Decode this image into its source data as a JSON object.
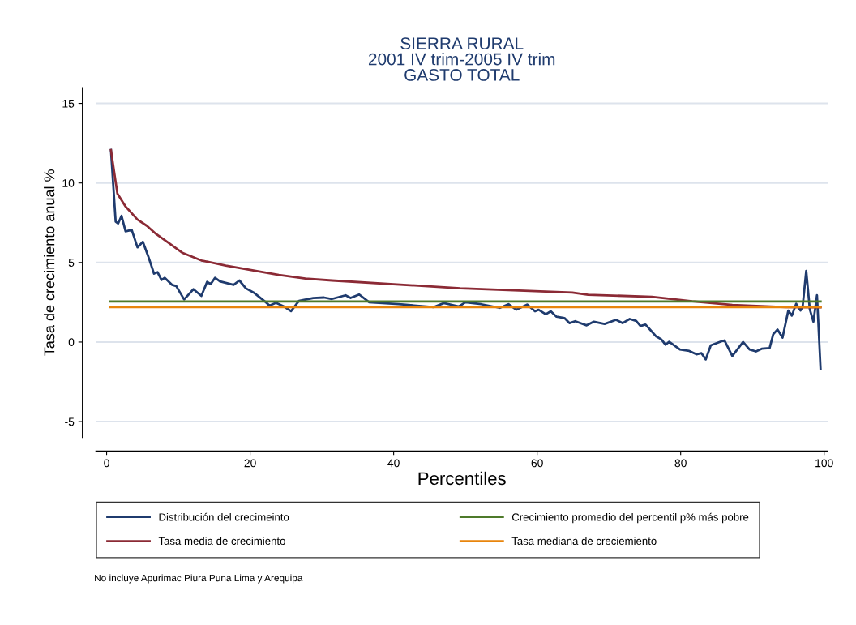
{
  "chart_data": {
    "type": "line",
    "title": "SIERRA RURAL\n2001 IV trim-2005 IV trim\nGASTO TOTAL",
    "xlabel": "Percentiles",
    "ylabel": "Tasa de crecimiento anual %",
    "xlim": [
      -1.5,
      100.5
    ],
    "ylim": [
      -6,
      16
    ],
    "xticks": [
      0,
      20,
      40,
      60,
      80,
      100
    ],
    "yticks": [
      -5,
      0,
      5,
      10,
      15
    ],
    "grid": "y",
    "legend": "bottom",
    "line_style": "solid",
    "marker": "none",
    "series": [
      {
        "name": "Distribución del crecimeinto",
        "color": "#1f3b6e",
        "x": [
          0.6,
          1.26,
          1.6,
          2.08,
          2.64,
          3.5,
          4.3,
          5.05,
          5.8,
          6.6,
          7.1,
          7.65,
          8.1,
          9.1,
          9.7,
          10.8,
          12.1,
          13.2,
          14.0,
          14.5,
          15.1,
          15.8,
          17.7,
          18.5,
          19.4,
          20.5,
          22.2,
          22.7,
          23.6,
          24.7,
          25.7,
          26.8,
          28.8,
          30.3,
          31.4,
          33.3,
          34.0,
          35.2,
          36.6,
          40.7,
          45.6,
          47.0,
          49.1,
          50.0,
          52.2,
          54.8,
          56.0,
          57.1,
          58.6,
          59.7,
          60.2,
          61.2,
          61.9,
          62.7,
          63.8,
          64.5,
          65.3,
          66.9,
          67.9,
          69.4,
          71.0,
          71.9,
          72.9,
          73.8,
          74.4,
          75.1,
          75.8,
          76.6,
          77.3,
          77.9,
          78.4,
          79.9,
          81.2,
          82.2,
          82.9,
          83.5,
          84.2,
          85.7,
          86.1,
          87.2,
          88.7,
          89.6,
          90.5,
          91.3,
          92.4,
          92.9,
          93.5,
          94.2,
          95.0,
          95.5,
          96.1,
          96.7,
          97.0,
          97.5,
          98.0,
          98.5,
          99.0,
          99.5
        ],
        "values": [
          12.07,
          7.57,
          7.45,
          7.93,
          6.96,
          7.05,
          5.95,
          6.3,
          5.39,
          4.3,
          4.39,
          3.9,
          4.04,
          3.6,
          3.52,
          2.68,
          3.32,
          2.9,
          3.78,
          3.64,
          4.04,
          3.81,
          3.6,
          3.87,
          3.38,
          3.11,
          2.5,
          2.29,
          2.47,
          2.24,
          1.94,
          2.59,
          2.77,
          2.8,
          2.71,
          2.94,
          2.77,
          2.99,
          2.5,
          2.38,
          2.2,
          2.45,
          2.24,
          2.5,
          2.38,
          2.15,
          2.38,
          2.03,
          2.36,
          1.93,
          2.03,
          1.75,
          1.93,
          1.59,
          1.51,
          1.19,
          1.31,
          1.05,
          1.28,
          1.14,
          1.4,
          1.19,
          1.45,
          1.33,
          1.01,
          1.1,
          0.75,
          0.35,
          0.17,
          -0.17,
          0.02,
          -0.47,
          -0.56,
          -0.77,
          -0.7,
          -1.09,
          -0.21,
          0.05,
          0.1,
          -0.88,
          0.0,
          -0.47,
          -0.59,
          -0.42,
          -0.38,
          0.49,
          0.79,
          0.28,
          1.98,
          1.66,
          2.41,
          1.98,
          2.24,
          4.48,
          2.06,
          1.28,
          2.94,
          -1.7
        ]
      },
      {
        "name": "Tasa media de crecimiento",
        "color": "#8b2a35",
        "x": [
          0.6,
          1.5,
          2.6,
          4.3,
          5.6,
          6.9,
          8.8,
          10.6,
          13.2,
          16.6,
          20.3,
          24.0,
          27.7,
          31.4,
          49.3,
          64.9,
          67.1,
          76.0,
          81.6,
          87.2,
          94.6,
          99.5
        ],
        "values": [
          12.07,
          9.33,
          8.54,
          7.7,
          7.31,
          6.79,
          6.18,
          5.6,
          5.13,
          4.81,
          4.51,
          4.22,
          3.99,
          3.87,
          3.38,
          3.11,
          2.97,
          2.85,
          2.56,
          2.33,
          2.2,
          2.18
        ]
      },
      {
        "name": "Crecimiento promedio del percentil p% más pobre",
        "color": "#4e7a2a",
        "x": [
          0.5,
          99.5
        ],
        "values": [
          2.55,
          2.55
        ]
      },
      {
        "name": "Tasa mediana de creciemiento",
        "color": "#e8850c",
        "x": [
          0.5,
          99.5
        ],
        "values": [
          2.2,
          2.2
        ]
      }
    ],
    "annotations": [
      "No incluye Apurimac Piura Puna Lima y Arequipa"
    ]
  }
}
